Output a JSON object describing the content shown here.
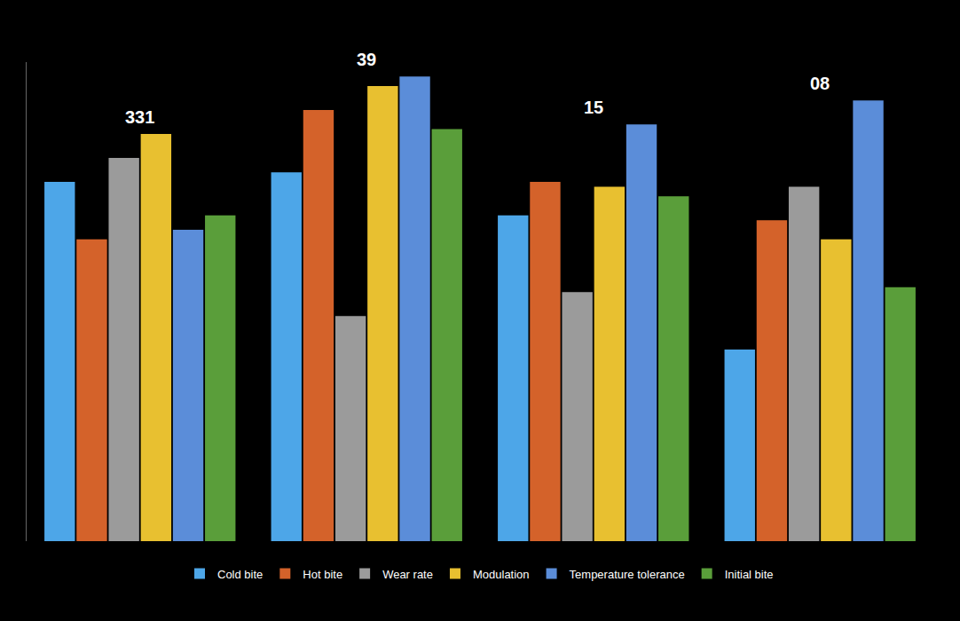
{
  "chart_data": {
    "type": "bar",
    "categories": [
      "331",
      "39",
      "15",
      "08"
    ],
    "series": [
      {
        "name": "Cold bite",
        "color": "#4da6e8",
        "values": [
          75,
          77,
          68,
          40
        ]
      },
      {
        "name": "Hot bite",
        "color": "#d4622a",
        "values": [
          63,
          90,
          75,
          67
        ]
      },
      {
        "name": "Wear rate",
        "color": "#9b9b9b",
        "values": [
          80,
          47,
          52,
          74
        ]
      },
      {
        "name": "Modulation",
        "color": "#e8c030",
        "values": [
          85,
          95,
          74,
          63
        ]
      },
      {
        "name": "Temperature tolerance",
        "color": "#5b8dd9",
        "values": [
          65,
          97,
          87,
          92
        ]
      },
      {
        "name": "Initial bite",
        "color": "#5a9e3a",
        "values": [
          68,
          86,
          72,
          53
        ]
      }
    ],
    "ylim": [
      0,
      100
    ],
    "grid": false,
    "legend": "bottom",
    "tick_labels": false
  }
}
